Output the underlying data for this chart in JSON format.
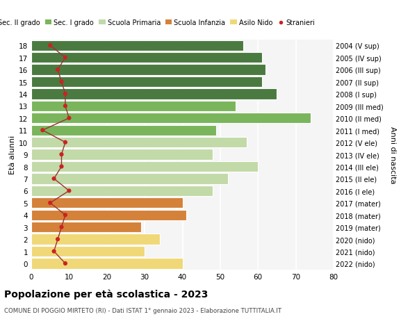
{
  "ages": [
    18,
    17,
    16,
    15,
    14,
    13,
    12,
    11,
    10,
    9,
    8,
    7,
    6,
    5,
    4,
    3,
    2,
    1,
    0
  ],
  "years": [
    "2004 (V sup)",
    "2005 (IV sup)",
    "2006 (III sup)",
    "2007 (II sup)",
    "2008 (I sup)",
    "2009 (III med)",
    "2010 (II med)",
    "2011 (I med)",
    "2012 (V ele)",
    "2013 (IV ele)",
    "2014 (III ele)",
    "2015 (II ele)",
    "2016 (I ele)",
    "2017 (mater)",
    "2018 (mater)",
    "2019 (mater)",
    "2020 (nido)",
    "2021 (nido)",
    "2022 (nido)"
  ],
  "bar_values": [
    56,
    61,
    62,
    61,
    65,
    54,
    74,
    49,
    57,
    48,
    60,
    52,
    48,
    40,
    41,
    29,
    34,
    30,
    40
  ],
  "stranieri": [
    5,
    9,
    7,
    8,
    9,
    9,
    10,
    3,
    9,
    8,
    8,
    6,
    10,
    5,
    9,
    8,
    7,
    6,
    9
  ],
  "bar_colors": [
    "#4a7a40",
    "#4a7a40",
    "#4a7a40",
    "#4a7a40",
    "#4a7a40",
    "#7ab55c",
    "#7ab55c",
    "#7ab55c",
    "#c2d9a8",
    "#c2d9a8",
    "#c2d9a8",
    "#c2d9a8",
    "#c2d9a8",
    "#d4813a",
    "#d4813a",
    "#d4813a",
    "#f0d878",
    "#f0d878",
    "#f0d878"
  ],
  "legend_labels": [
    "Sec. II grado",
    "Sec. I grado",
    "Scuola Primaria",
    "Scuola Infanzia",
    "Asilo Nido",
    "Stranieri"
  ],
  "legend_colors": [
    "#4a7a40",
    "#7ab55c",
    "#c2d9a8",
    "#d4813a",
    "#f0d878",
    "#cc2222"
  ],
  "title": "Popolazione per età scolastica - 2023",
  "subtitle": "COMUNE DI POGGIO MIRTETO (RI) - Dati ISTAT 1° gennaio 2023 - Elaborazione TUTTITALIA.IT",
  "ylabel_left": "Età alunni",
  "ylabel_right": "Anni di nascita",
  "xlim": [
    0,
    80
  ],
  "background_color": "#ffffff",
  "stranieri_color": "#cc2222",
  "stranieri_line_color": "#993333"
}
